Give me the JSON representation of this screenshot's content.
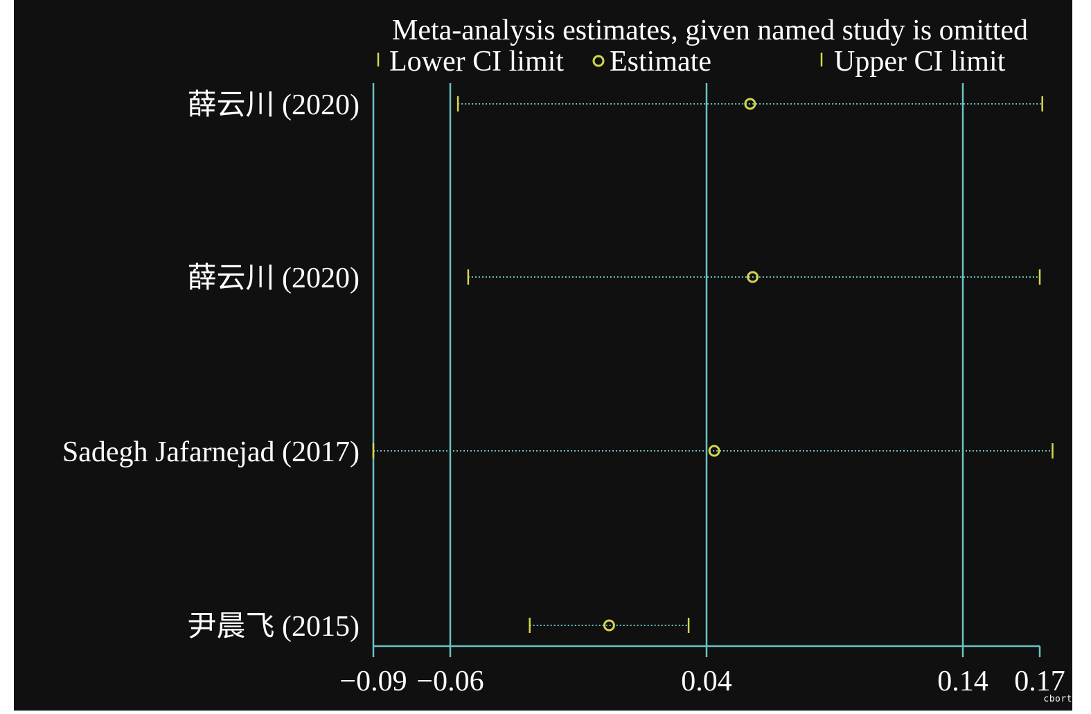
{
  "chart_data": {
    "type": "forest",
    "title": "Meta-analysis estimates, given named study is omitted",
    "legend": {
      "position": "top",
      "entries": [
        {
          "label": "Lower CI limit",
          "marker": "tick"
        },
        {
          "label": "Estimate",
          "marker": "circle"
        },
        {
          "label": "Upper CI limit",
          "marker": "tick"
        }
      ]
    },
    "studies": [
      {
        "label": "薛云川 (2020)",
        "lower": -0.057,
        "estimate": 0.057,
        "upper": 0.171
      },
      {
        "label": "薛云川 (2020)",
        "lower": -0.053,
        "estimate": 0.058,
        "upper": 0.17
      },
      {
        "label": "Sadegh Jafarnejad (2017)",
        "lower": -0.09,
        "estimate": 0.043,
        "upper": 0.175
      },
      {
        "label": "尹晨飞 (2015)",
        "lower": -0.029,
        "estimate": 0.002,
        "upper": 0.033
      }
    ],
    "xaxis": {
      "ticks": [
        -0.09,
        -0.06,
        0.04,
        0.14,
        0.17
      ],
      "tick_labels": [
        "−0.09",
        "−0.06",
        "0.04",
        "0.14",
        "0.17"
      ],
      "range": [
        -0.09,
        0.17
      ]
    },
    "reference_lines": [
      -0.09,
      -0.06,
      0.04,
      0.14
    ],
    "colors": {
      "background": "#101010",
      "axis": "#6cc3c3",
      "marker": "#d6d64a",
      "text": "#ffffff"
    }
  },
  "watermark": "cbortx.c"
}
